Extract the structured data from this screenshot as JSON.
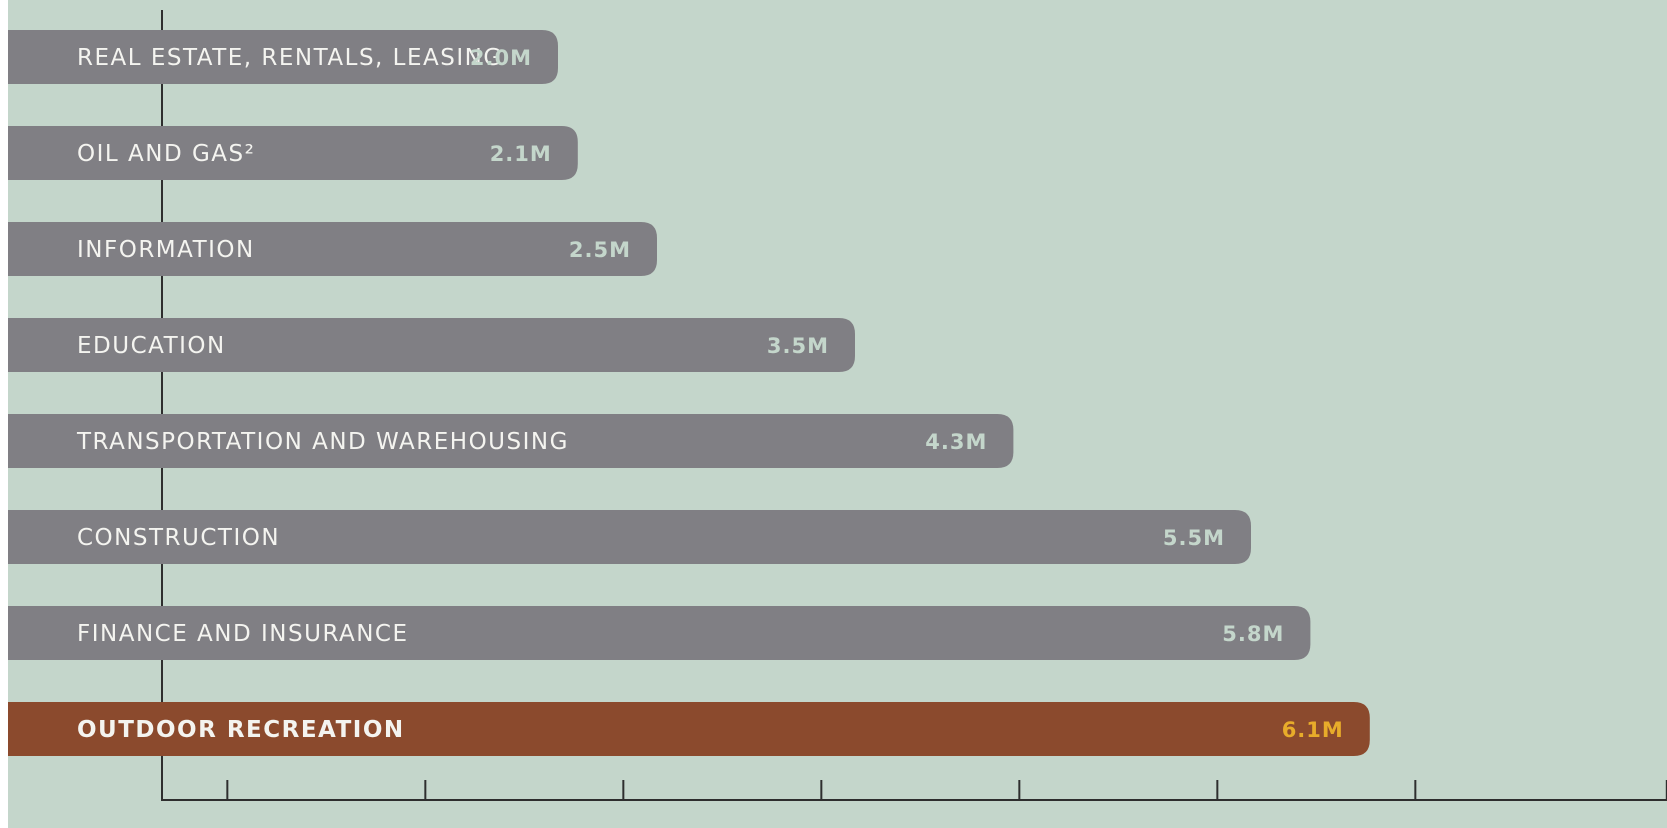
{
  "colors": {
    "background": "#c4d6cb",
    "bar": "#807f84",
    "highlight_bar": "#8b4a2d",
    "label_text": "#f4f4f0",
    "value_text": "#c4d6cb",
    "highlight_value_text": "#e8ac2a",
    "axis": "#2e2e2e"
  },
  "chart_data": {
    "type": "bar",
    "orientation": "horizontal",
    "categories": [
      "REAL ESTATE, RENTALS, LEASING",
      "OIL AND GAS²",
      "INFORMATION",
      "EDUCATION",
      "TRANSPORTATION AND WAREHOUSING",
      "CONSTRUCTION",
      "FINANCE AND INSURANCE",
      "OUTDOOR RECREATION"
    ],
    "values": [
      2.0,
      2.1,
      2.5,
      3.5,
      4.3,
      5.5,
      5.8,
      6.1
    ],
    "value_labels": [
      "2.0M",
      "2.1M",
      "2.5M",
      "3.5M",
      "4.3M",
      "5.5M",
      "5.8M",
      "6.1M"
    ],
    "highlight_category": "OUTDOOR RECREATION",
    "xlim": [
      0,
      7.6
    ],
    "xticks": [
      0.33,
      1.33,
      2.33,
      3.33,
      4.33,
      5.33,
      6.33,
      7.6
    ],
    "tick_labels_shown": false,
    "grid": false,
    "legend": "none",
    "title": "",
    "xlabel": "",
    "ylabel": ""
  }
}
